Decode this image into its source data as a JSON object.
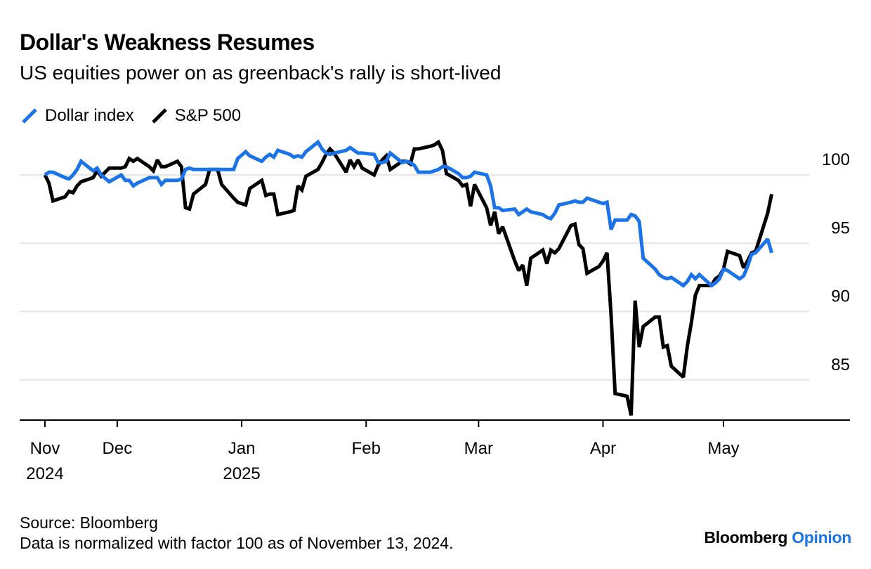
{
  "header": {
    "title": "Dollar's Weakness Resumes",
    "subtitle": "US equities power on as greenback's rally is short-lived"
  },
  "footer": {
    "source": "Source: Bloomberg",
    "note": "Data is normalized with factor 100 as of November 13, 2024.",
    "brand_main": "Bloomberg",
    "brand_accent": "Opinion"
  },
  "colors": {
    "dollar": "#1a73e8",
    "sp500": "#000000",
    "grid": "#e6e6e6",
    "accent": "#1a73e8"
  },
  "chart_data": {
    "type": "line",
    "title": "Dollar's Weakness Resumes",
    "subtitle": "US equities power on as greenback's rally is short-lived",
    "xlabel": "",
    "ylabel": "",
    "ylim": [
      81.5,
      102
    ],
    "y_ticks": [
      85,
      90,
      95,
      100
    ],
    "y_tick_labels": [
      "85",
      "90",
      "95",
      "100"
    ],
    "y_axis_position": "right",
    "grid": true,
    "legend_position": "top-left",
    "x_ticks": [
      {
        "date": "2024-11-13",
        "label": "Nov",
        "year": "2024"
      },
      {
        "date": "2024-12-01",
        "label": "Dec",
        "year": ""
      },
      {
        "date": "2025-01-01",
        "label": "Jan",
        "year": "2025"
      },
      {
        "date": "2025-02-01",
        "label": "Feb",
        "year": ""
      },
      {
        "date": "2025-03-01",
        "label": "Mar",
        "year": ""
      },
      {
        "date": "2025-04-01",
        "label": "Apr",
        "year": ""
      },
      {
        "date": "2025-05-01",
        "label": "May",
        "year": ""
      }
    ],
    "series": [
      {
        "name": "Dollar index",
        "color": "#1a73e8",
        "points": [
          [
            "2024-11-13",
            100.0
          ],
          [
            "2024-11-14",
            100.2
          ],
          [
            "2024-11-15",
            100.2
          ],
          [
            "2024-11-18",
            99.8
          ],
          [
            "2024-11-19",
            99.7
          ],
          [
            "2024-11-20",
            100.0
          ],
          [
            "2024-11-21",
            100.4
          ],
          [
            "2024-11-22",
            101.0
          ],
          [
            "2024-11-25",
            100.3
          ],
          [
            "2024-11-26",
            100.5
          ],
          [
            "2024-11-27",
            100.0
          ],
          [
            "2024-11-29",
            99.5
          ],
          [
            "2024-12-02",
            100.0
          ],
          [
            "2024-12-03",
            99.6
          ],
          [
            "2024-12-04",
            99.6
          ],
          [
            "2024-12-05",
            99.2
          ],
          [
            "2024-12-06",
            99.4
          ],
          [
            "2024-12-09",
            99.8
          ],
          [
            "2024-12-10",
            99.8
          ],
          [
            "2024-12-11",
            99.8
          ],
          [
            "2024-12-12",
            99.3
          ],
          [
            "2024-12-13",
            99.6
          ],
          [
            "2024-12-16",
            99.6
          ],
          [
            "2024-12-17",
            99.7
          ],
          [
            "2024-12-18",
            100.4
          ],
          [
            "2024-12-19",
            100.5
          ],
          [
            "2024-12-20",
            100.4
          ],
          [
            "2024-12-23",
            100.4
          ],
          [
            "2024-12-24",
            100.4
          ],
          [
            "2024-12-26",
            100.4
          ],
          [
            "2024-12-27",
            100.4
          ],
          [
            "2024-12-30",
            100.4
          ],
          [
            "2024-12-31",
            101.2
          ],
          [
            "2025-01-02",
            101.7
          ],
          [
            "2025-01-03",
            101.4
          ],
          [
            "2025-01-06",
            101.0
          ],
          [
            "2025-01-07",
            101.3
          ],
          [
            "2025-01-08",
            101.5
          ],
          [
            "2025-01-09",
            101.3
          ],
          [
            "2025-01-10",
            101.8
          ],
          [
            "2025-01-13",
            101.5
          ],
          [
            "2025-01-14",
            101.3
          ],
          [
            "2025-01-15",
            101.4
          ],
          [
            "2025-01-16",
            101.3
          ],
          [
            "2025-01-17",
            101.7
          ],
          [
            "2025-01-20",
            102.4
          ],
          [
            "2025-01-21",
            101.9
          ],
          [
            "2025-01-22",
            101.6
          ],
          [
            "2025-01-23",
            101.5
          ],
          [
            "2025-01-24",
            101.6
          ],
          [
            "2025-01-27",
            101.8
          ],
          [
            "2025-01-28",
            102.0
          ],
          [
            "2025-01-29",
            101.8
          ],
          [
            "2025-01-30",
            101.6
          ],
          [
            "2025-01-31",
            101.6
          ],
          [
            "2025-02-03",
            101.5
          ],
          [
            "2025-02-04",
            100.9
          ],
          [
            "2025-02-05",
            100.9
          ],
          [
            "2025-02-06",
            101.0
          ],
          [
            "2025-02-07",
            101.6
          ],
          [
            "2025-02-10",
            100.9
          ],
          [
            "2025-02-11",
            101.0
          ],
          [
            "2025-02-12",
            100.9
          ],
          [
            "2025-02-13",
            100.7
          ],
          [
            "2025-02-14",
            100.2
          ],
          [
            "2025-02-17",
            100.2
          ],
          [
            "2025-02-18",
            100.3
          ],
          [
            "2025-02-19",
            100.4
          ],
          [
            "2025-02-20",
            100.6
          ],
          [
            "2025-02-21",
            100.6
          ],
          [
            "2025-02-24",
            100.1
          ],
          [
            "2025-02-25",
            99.8
          ],
          [
            "2025-02-26",
            99.8
          ],
          [
            "2025-02-27",
            99.9
          ],
          [
            "2025-02-28",
            100.2
          ],
          [
            "2025-03-03",
            100.0
          ],
          [
            "2025-03-04",
            99.2
          ],
          [
            "2025-03-05",
            97.6
          ],
          [
            "2025-03-06",
            97.6
          ],
          [
            "2025-03-07",
            97.4
          ],
          [
            "2025-03-10",
            97.5
          ],
          [
            "2025-03-11",
            97.1
          ],
          [
            "2025-03-12",
            97.3
          ],
          [
            "2025-03-13",
            97.5
          ],
          [
            "2025-03-14",
            97.3
          ],
          [
            "2025-03-17",
            97.1
          ],
          [
            "2025-03-18",
            96.9
          ],
          [
            "2025-03-19",
            96.8
          ],
          [
            "2025-03-20",
            97.2
          ],
          [
            "2025-03-21",
            97.8
          ],
          [
            "2025-03-24",
            98.0
          ],
          [
            "2025-03-25",
            98.1
          ],
          [
            "2025-03-26",
            98.0
          ],
          [
            "2025-03-27",
            98.0
          ],
          [
            "2025-03-28",
            98.3
          ],
          [
            "2025-03-31",
            98.0
          ],
          [
            "2025-04-01",
            97.9
          ],
          [
            "2025-04-02",
            98.0
          ],
          [
            "2025-04-03",
            96.0
          ],
          [
            "2025-04-04",
            96.7
          ],
          [
            "2025-04-07",
            96.7
          ],
          [
            "2025-04-08",
            97.1
          ],
          [
            "2025-04-09",
            97.0
          ],
          [
            "2025-04-10",
            96.6
          ],
          [
            "2025-04-11",
            93.9
          ],
          [
            "2025-04-14",
            93.1
          ],
          [
            "2025-04-15",
            92.7
          ],
          [
            "2025-04-16",
            92.5
          ],
          [
            "2025-04-17",
            92.4
          ],
          [
            "2025-04-18",
            92.5
          ],
          [
            "2025-04-21",
            91.9
          ],
          [
            "2025-04-22",
            92.2
          ],
          [
            "2025-04-23",
            92.7
          ],
          [
            "2025-04-24",
            92.4
          ],
          [
            "2025-04-25",
            92.7
          ],
          [
            "2025-04-28",
            91.9
          ],
          [
            "2025-04-29",
            92.1
          ],
          [
            "2025-04-30",
            92.4
          ],
          [
            "2025-05-01",
            93.1
          ],
          [
            "2025-05-02",
            93.0
          ],
          [
            "2025-05-05",
            92.4
          ],
          [
            "2025-05-06",
            92.6
          ],
          [
            "2025-05-07",
            93.3
          ],
          [
            "2025-05-08",
            94.2
          ],
          [
            "2025-05-09",
            94.3
          ],
          [
            "2025-05-12",
            95.3
          ],
          [
            "2025-05-13",
            94.3
          ]
        ]
      },
      {
        "name": "S&P 500",
        "color": "#000000",
        "points": [
          [
            "2024-11-13",
            100.0
          ],
          [
            "2024-11-14",
            99.4
          ],
          [
            "2024-11-15",
            98.1
          ],
          [
            "2024-11-18",
            98.4
          ],
          [
            "2024-11-19",
            98.8
          ],
          [
            "2024-11-20",
            98.7
          ],
          [
            "2024-11-21",
            99.2
          ],
          [
            "2024-11-22",
            99.5
          ],
          [
            "2024-11-25",
            99.8
          ],
          [
            "2024-11-26",
            100.3
          ],
          [
            "2024-11-27",
            99.9
          ],
          [
            "2024-11-29",
            100.5
          ],
          [
            "2024-12-02",
            100.5
          ],
          [
            "2024-12-03",
            100.6
          ],
          [
            "2024-12-04",
            101.2
          ],
          [
            "2024-12-05",
            101.0
          ],
          [
            "2024-12-06",
            101.2
          ],
          [
            "2024-12-09",
            100.6
          ],
          [
            "2024-12-10",
            100.3
          ],
          [
            "2024-12-11",
            101.1
          ],
          [
            "2024-12-12",
            100.6
          ],
          [
            "2024-12-13",
            100.6
          ],
          [
            "2024-12-16",
            101.0
          ],
          [
            "2024-12-17",
            100.6
          ],
          [
            "2024-12-18",
            97.6
          ],
          [
            "2024-12-19",
            97.5
          ],
          [
            "2024-12-20",
            98.6
          ],
          [
            "2024-12-23",
            99.3
          ],
          [
            "2024-12-24",
            100.4
          ],
          [
            "2024-12-26",
            100.4
          ],
          [
            "2024-12-27",
            99.3
          ],
          [
            "2024-12-30",
            98.3
          ],
          [
            "2024-12-31",
            98.0
          ],
          [
            "2025-01-02",
            97.8
          ],
          [
            "2025-01-03",
            99.0
          ],
          [
            "2025-01-06",
            99.6
          ],
          [
            "2025-01-07",
            98.5
          ],
          [
            "2025-01-08",
            98.6
          ],
          [
            "2025-01-09",
            98.6
          ],
          [
            "2025-01-10",
            97.1
          ],
          [
            "2025-01-13",
            97.3
          ],
          [
            "2025-01-14",
            97.4
          ],
          [
            "2025-01-15",
            99.2
          ],
          [
            "2025-01-16",
            98.9
          ],
          [
            "2025-01-17",
            99.9
          ],
          [
            "2025-01-20",
            100.4
          ],
          [
            "2025-01-21",
            100.9
          ],
          [
            "2025-01-22",
            101.5
          ],
          [
            "2025-01-23",
            101.9
          ],
          [
            "2025-01-24",
            101.6
          ],
          [
            "2025-01-27",
            100.2
          ],
          [
            "2025-01-28",
            101.1
          ],
          [
            "2025-01-29",
            100.6
          ],
          [
            "2025-01-30",
            101.1
          ],
          [
            "2025-01-31",
            100.5
          ],
          [
            "2025-02-03",
            100.0
          ],
          [
            "2025-02-04",
            100.7
          ],
          [
            "2025-02-05",
            101.1
          ],
          [
            "2025-02-06",
            101.4
          ],
          [
            "2025-02-07",
            100.4
          ],
          [
            "2025-02-10",
            101.0
          ],
          [
            "2025-02-11",
            101.0
          ],
          [
            "2025-02-12",
            100.8
          ],
          [
            "2025-02-13",
            101.9
          ],
          [
            "2025-02-14",
            101.9
          ],
          [
            "2025-02-17",
            102.1
          ],
          [
            "2025-02-18",
            102.2
          ],
          [
            "2025-02-19",
            102.4
          ],
          [
            "2025-02-20",
            101.8
          ],
          [
            "2025-02-21",
            100.1
          ],
          [
            "2025-02-24",
            99.6
          ],
          [
            "2025-02-25",
            99.2
          ],
          [
            "2025-02-26",
            99.3
          ],
          [
            "2025-02-27",
            97.7
          ],
          [
            "2025-02-28",
            99.3
          ],
          [
            "2025-03-03",
            97.6
          ],
          [
            "2025-03-04",
            96.3
          ],
          [
            "2025-03-05",
            97.3
          ],
          [
            "2025-03-06",
            95.7
          ],
          [
            "2025-03-07",
            96.2
          ],
          [
            "2025-03-10",
            93.7
          ],
          [
            "2025-03-11",
            93.0
          ],
          [
            "2025-03-12",
            93.4
          ],
          [
            "2025-03-13",
            91.9
          ],
          [
            "2025-03-14",
            93.9
          ],
          [
            "2025-03-17",
            94.5
          ],
          [
            "2025-03-18",
            93.5
          ],
          [
            "2025-03-19",
            94.5
          ],
          [
            "2025-03-20",
            94.3
          ],
          [
            "2025-03-21",
            94.6
          ],
          [
            "2025-03-24",
            96.3
          ],
          [
            "2025-03-25",
            96.4
          ],
          [
            "2025-03-26",
            94.9
          ],
          [
            "2025-03-27",
            94.6
          ],
          [
            "2025-03-28",
            92.8
          ],
          [
            "2025-03-31",
            93.3
          ],
          [
            "2025-04-01",
            93.7
          ],
          [
            "2025-04-02",
            94.3
          ],
          [
            "2025-04-03",
            89.7
          ],
          [
            "2025-04-04",
            84.0
          ],
          [
            "2025-04-07",
            83.8
          ],
          [
            "2025-04-08",
            82.4
          ],
          [
            "2025-04-09",
            90.8
          ],
          [
            "2025-04-10",
            87.4
          ],
          [
            "2025-04-11",
            88.9
          ],
          [
            "2025-04-14",
            89.6
          ],
          [
            "2025-04-15",
            89.6
          ],
          [
            "2025-04-16",
            87.4
          ],
          [
            "2025-04-17",
            87.5
          ],
          [
            "2025-04-18",
            86.0
          ],
          [
            "2025-04-21",
            85.2
          ],
          [
            "2025-04-22",
            87.5
          ],
          [
            "2025-04-23",
            89.2
          ],
          [
            "2025-04-24",
            91.2
          ],
          [
            "2025-04-25",
            91.9
          ],
          [
            "2025-04-28",
            91.9
          ],
          [
            "2025-04-29",
            92.4
          ],
          [
            "2025-04-30",
            92.6
          ],
          [
            "2025-05-01",
            93.1
          ],
          [
            "2025-05-02",
            94.4
          ],
          [
            "2025-05-05",
            94.1
          ],
          [
            "2025-05-06",
            93.2
          ],
          [
            "2025-05-07",
            93.7
          ],
          [
            "2025-05-08",
            94.3
          ],
          [
            "2025-05-09",
            94.4
          ],
          [
            "2025-05-12",
            97.2
          ],
          [
            "2025-05-13",
            98.6
          ]
        ]
      }
    ]
  }
}
